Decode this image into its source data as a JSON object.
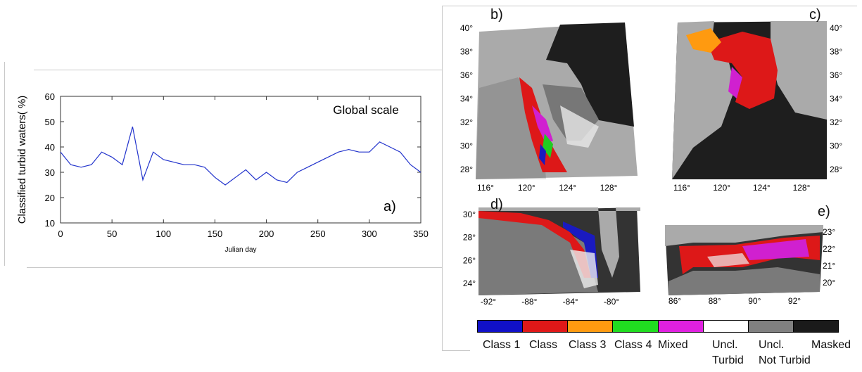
{
  "chart_data": {
    "type": "line",
    "title": "Global scale",
    "panel_label": "a)",
    "xlabel": "Julian day",
    "ylabel": "Classified turbid waters( %)",
    "xlim": [
      0,
      350
    ],
    "ylim": [
      10,
      60
    ],
    "xticks": [
      "0",
      "50",
      "100",
      "150",
      "200",
      "250",
      "300",
      "350"
    ],
    "yticks": [
      "10",
      "20",
      "30",
      "40",
      "50",
      "60"
    ],
    "grid": false,
    "color": "#2233cc",
    "series": [
      {
        "x": [
          0,
          10,
          20,
          30,
          40,
          50,
          60,
          70,
          80,
          90,
          100,
          110,
          120,
          130,
          140,
          150,
          160,
          170,
          180,
          190,
          200,
          210,
          220,
          230,
          240,
          250,
          260,
          270,
          280,
          290,
          300,
          310,
          320,
          330,
          340,
          350
        ],
        "values": [
          38,
          33,
          32,
          33,
          38,
          36,
          33,
          48,
          27,
          38,
          35,
          34,
          33,
          33,
          32,
          28,
          25,
          28,
          31,
          27,
          30,
          27,
          26,
          30,
          32,
          34,
          36,
          38,
          39,
          38,
          38,
          42,
          40,
          38,
          33,
          30
        ]
      }
    ]
  },
  "maps": {
    "b": {
      "label": "b)",
      "xticks": [
        "116°",
        "120°",
        "124°",
        "128°"
      ],
      "yticks": [
        "40°",
        "38°",
        "36°",
        "34°",
        "32°",
        "30°",
        "28°"
      ]
    },
    "c": {
      "label": "c)",
      "xticks": [
        "116°",
        "120°",
        "124°",
        "128°"
      ],
      "yticks": [
        "40°",
        "38°",
        "36°",
        "34°",
        "32°",
        "30°",
        "28°"
      ]
    },
    "d": {
      "label": "d)",
      "xticks": [
        "-92°",
        "-88°",
        "-84°",
        "-80°"
      ],
      "yticks": [
        "30°",
        "28°",
        "26°",
        "24°"
      ]
    },
    "e": {
      "label": "e)",
      "xticks": [
        "86°",
        "88°",
        "90°",
        "92°"
      ],
      "yticks": [
        "23°",
        "22°",
        "21°",
        "20°"
      ]
    }
  },
  "legend": {
    "colors": [
      "#1010c8",
      "#e01818",
      "#ff9a10",
      "#20dd20",
      "#e020e0",
      "#ffffff",
      "#808080",
      "#1a1a1a"
    ],
    "labels": [
      "Class 1",
      "Class",
      "Class 3",
      "Class 4",
      "Mixed",
      "Uncl.",
      "Uncl.",
      "Masked"
    ],
    "sublabels": [
      "Turbid",
      "Not Turbid"
    ]
  }
}
